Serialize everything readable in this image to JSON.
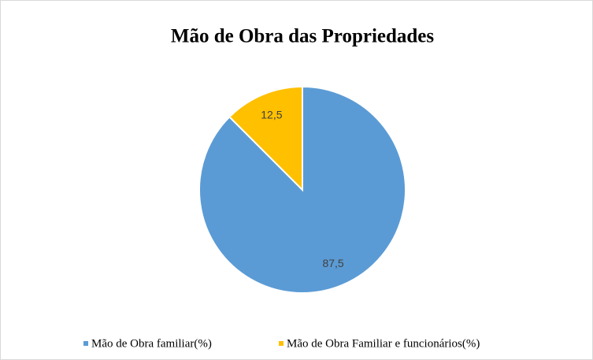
{
  "chart_data": {
    "type": "pie",
    "title": "Mão de Obra das Propriedades",
    "categories": [
      "Mão de Obra familiar(%)",
      "Mão de Obra Familiar e funcionários(%)"
    ],
    "values": [
      87.5,
      12.5
    ],
    "value_labels": [
      "87,5",
      "12,5"
    ],
    "colors": [
      "#5b9bd5",
      "#ffc000"
    ],
    "legend": "bottom"
  }
}
